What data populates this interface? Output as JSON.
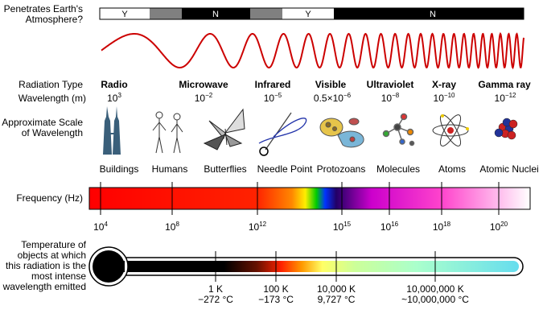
{
  "atmosphere": {
    "label_line1": "Penetrates Earth's",
    "label_line2": "Atmosphere?",
    "segments": [
      {
        "label": "Y",
        "kind": "yes"
      },
      {
        "label": "",
        "kind": "partial"
      },
      {
        "label": "N",
        "kind": "no"
      },
      {
        "label": "",
        "kind": "partial"
      },
      {
        "label": "Y",
        "kind": "yes"
      },
      {
        "label": "N",
        "kind": "no"
      }
    ]
  },
  "rows": {
    "type_label": "Radiation Type",
    "wavelength_label": "Wavelength (m)",
    "scale_label_line1": "Approximate Scale",
    "scale_label_line2": "of Wavelength"
  },
  "bands": [
    {
      "name": "Radio",
      "wl_base": "10",
      "wl_exp": "3"
    },
    {
      "name": "Microwave",
      "wl_base": "10",
      "wl_exp": "−2"
    },
    {
      "name": "Infrared",
      "wl_base": "10",
      "wl_exp": "−5"
    },
    {
      "name": "Visible",
      "wl_base": "0.5×10",
      "wl_exp": "−6"
    },
    {
      "name": "Ultraviolet",
      "wl_base": "10",
      "wl_exp": "−8"
    },
    {
      "name": "X-ray",
      "wl_base": "10",
      "wl_exp": "−10"
    },
    {
      "name": "Gamma ray",
      "wl_base": "10",
      "wl_exp": "−12"
    }
  ],
  "scale_objects": [
    "Buildings",
    "Humans",
    "Butterflies",
    "Needle Point",
    "Protozoans",
    "Molecules",
    "Atoms",
    "Atomic Nuclei"
  ],
  "frequency": {
    "label": "Frequency (Hz)",
    "ticks": [
      {
        "base": "10",
        "exp": "4"
      },
      {
        "base": "10",
        "exp": "8"
      },
      {
        "base": "10",
        "exp": "12"
      },
      {
        "base": "10",
        "exp": "15"
      },
      {
        "base": "10",
        "exp": "16"
      },
      {
        "base": "10",
        "exp": "18"
      },
      {
        "base": "10",
        "exp": "20"
      }
    ]
  },
  "temperature": {
    "label_lines": [
      "Temperature of",
      "objects at which",
      "this radiation is the",
      "most intense",
      "wavelength emitted"
    ],
    "ticks": [
      {
        "line1": "1 K",
        "line2": "−272 °C"
      },
      {
        "line1": "100 K",
        "line2": "−173 °C"
      },
      {
        "line1": "10,000 K",
        "line2": "9,727 °C"
      },
      {
        "line1": "10,000,000 K",
        "line2": "~10,000,000 °C"
      }
    ]
  },
  "colors": {
    "yes_fill": "#ffffff",
    "partial_fill": "#808080",
    "no_fill": "#000000",
    "wave": "#cc0000"
  }
}
